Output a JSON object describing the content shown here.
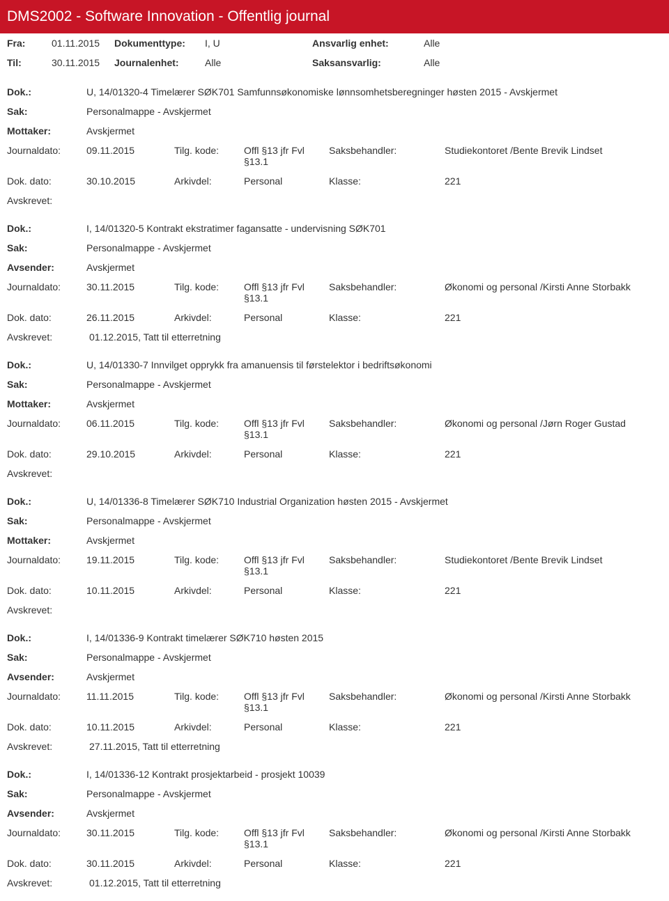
{
  "header": {
    "title": "DMS2002 - Software Innovation - Offentlig journal"
  },
  "meta": {
    "fra_label": "Fra:",
    "fra_value": "01.11.2015",
    "til_label": "Til:",
    "til_value": "30.11.2015",
    "doktype_label": "Dokumenttype:",
    "doktype_value": "I, U",
    "journalenhet_label": "Journalenhet:",
    "journalenhet_value": "Alle",
    "ansvarlig_label": "Ansvarlig enhet:",
    "ansvarlig_value": "Alle",
    "saks_label": "Saksansvarlig:",
    "saks_value": "Alle"
  },
  "labels": {
    "dok": "Dok.:",
    "sak": "Sak:",
    "mottaker": "Mottaker:",
    "avsender": "Avsender:",
    "journaldato": "Journaldato:",
    "dokdato": "Dok. dato:",
    "tilg": "Tilg. kode:",
    "arkivdel": "Arkivdel:",
    "saksbehandler": "Saksbehandler:",
    "klasse": "Klasse:",
    "avskrevet": "Avskrevet:"
  },
  "entries": [
    {
      "dok": "U, 14/01320-4 Timelærer SØK701 Samfunnsøkonomiske lønnsomhetsberegninger høsten 2015 - Avskjermet",
      "sak": "Personalmappe - Avskjermet",
      "party_label": "Mottaker:",
      "party_value": "Avskjermet",
      "journaldato": "09.11.2015",
      "tilg": "Offl §13 jfr Fvl §13.1",
      "saksbehandler": "Studiekontoret /Bente Brevik Lindset",
      "dokdato": "30.10.2015",
      "arkivdel": "Personal",
      "klasse": "221",
      "avskrevet": ""
    },
    {
      "dok": "I, 14/01320-5 Kontrakt ekstratimer fagansatte - undervisning SØK701",
      "sak": "Personalmappe - Avskjermet",
      "party_label": "Avsender:",
      "party_value": "Avskjermet",
      "journaldato": "30.11.2015",
      "tilg": "Offl §13 jfr Fvl §13.1",
      "saksbehandler": "Økonomi og personal /Kirsti Anne Storbakk",
      "dokdato": "26.11.2015",
      "arkivdel": "Personal",
      "klasse": "221",
      "avskrevet": "01.12.2015, Tatt til etterretning"
    },
    {
      "dok": "U, 14/01330-7 Innvilget opprykk fra amanuensis til førstelektor i bedriftsøkonomi",
      "sak": "Personalmappe - Avskjermet",
      "party_label": "Mottaker:",
      "party_value": "Avskjermet",
      "journaldato": "06.11.2015",
      "tilg": "Offl §13 jfr Fvl §13.1",
      "saksbehandler": "Økonomi og personal /Jørn Roger Gustad",
      "dokdato": "29.10.2015",
      "arkivdel": "Personal",
      "klasse": "221",
      "avskrevet": ""
    },
    {
      "dok": "U, 14/01336-8 Timelærer SØK710 Industrial Organization høsten 2015 - Avskjermet",
      "sak": "Personalmappe - Avskjermet",
      "party_label": "Mottaker:",
      "party_value": "Avskjermet",
      "journaldato": "19.11.2015",
      "tilg": "Offl §13 jfr Fvl §13.1",
      "saksbehandler": "Studiekontoret /Bente Brevik Lindset",
      "dokdato": "10.11.2015",
      "arkivdel": "Personal",
      "klasse": "221",
      "avskrevet": ""
    },
    {
      "dok": "I, 14/01336-9 Kontrakt timelærer SØK710 høsten 2015",
      "sak": "Personalmappe - Avskjermet",
      "party_label": "Avsender:",
      "party_value": "Avskjermet",
      "journaldato": "11.11.2015",
      "tilg": "Offl §13 jfr Fvl §13.1",
      "saksbehandler": "Økonomi og personal /Kirsti Anne Storbakk",
      "dokdato": "10.11.2015",
      "arkivdel": "Personal",
      "klasse": "221",
      "avskrevet": "27.11.2015, Tatt til etterretning"
    },
    {
      "dok": "I, 14/01336-12 Kontrakt prosjektarbeid - prosjekt 10039",
      "sak": "Personalmappe - Avskjermet",
      "party_label": "Avsender:",
      "party_value": "Avskjermet",
      "journaldato": "30.11.2015",
      "tilg": "Offl §13 jfr Fvl §13.1",
      "saksbehandler": "Økonomi og personal /Kirsti Anne Storbakk",
      "dokdato": "30.11.2015",
      "arkivdel": "Personal",
      "klasse": "221",
      "avskrevet": "01.12.2015, Tatt til etterretning"
    }
  ]
}
